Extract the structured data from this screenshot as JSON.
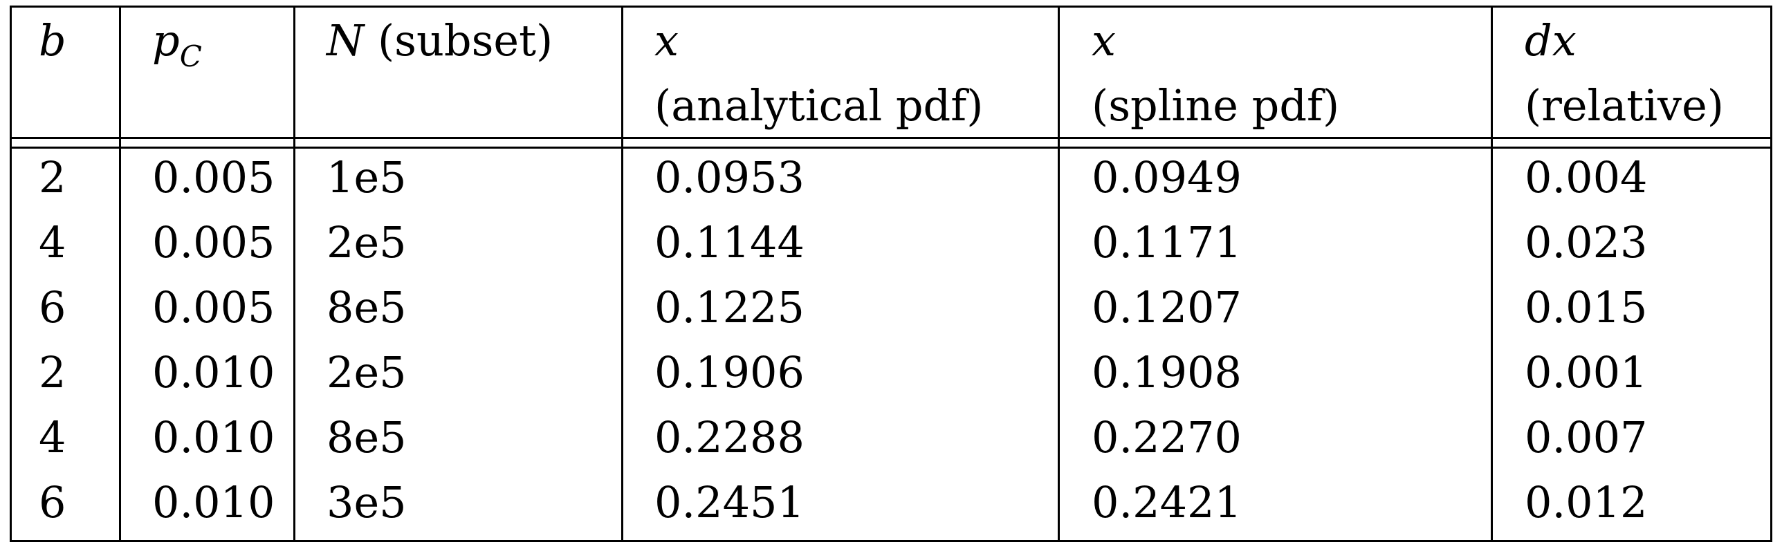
{
  "table": {
    "headers": [
      {
        "line1_italic": "b",
        "line1_rest": "",
        "line2": ""
      },
      {
        "line1_italic": "p",
        "subscript": "C",
        "line1_rest": "",
        "line2": ""
      },
      {
        "line1_italic": "N",
        "line1_rest": " (subset)",
        "line2": ""
      },
      {
        "line1_italic": "x",
        "line1_rest": "",
        "line2": "(analytical pdf)"
      },
      {
        "line1_italic": "x",
        "line1_rest": "",
        "line2": "(spline pdf)"
      },
      {
        "line1_italic": "dx",
        "line1_rest": "",
        "line2": "(relative)"
      }
    ],
    "rows": [
      [
        "2",
        "0.005",
        "1e5",
        "0.0953",
        "0.0949",
        "0.004"
      ],
      [
        "4",
        "0.005",
        "2e5",
        "0.1144",
        "0.1171",
        "0.023"
      ],
      [
        "6",
        "0.005",
        "8e5",
        "0.1225",
        "0.1207",
        "0.015"
      ],
      [
        "2",
        "0.010",
        "2e5",
        "0.1906",
        "0.1908",
        "0.001"
      ],
      [
        "4",
        "0.010",
        "8e5",
        "0.2288",
        "0.2270",
        "0.007"
      ],
      [
        "6",
        "0.010",
        "3e5",
        "0.2451",
        "0.2421",
        "0.012"
      ]
    ]
  }
}
